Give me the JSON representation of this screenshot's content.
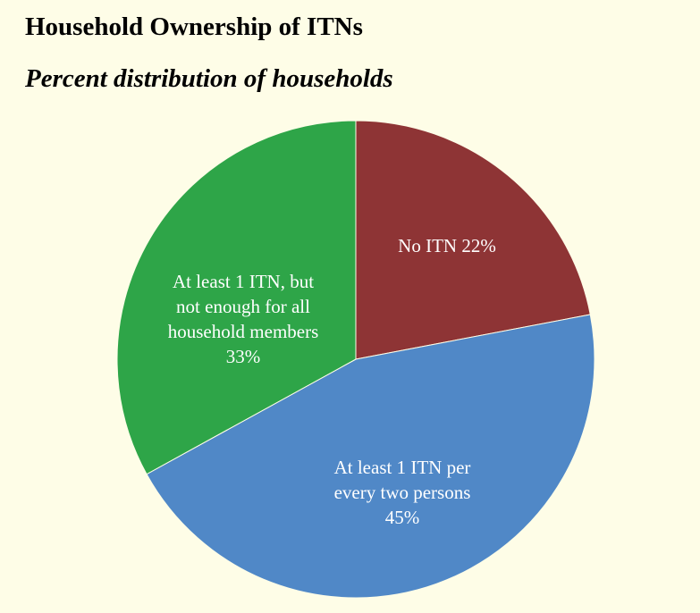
{
  "chart_data": {
    "type": "pie",
    "title": "Household Ownership of ITNs",
    "subtitle": "Percent distribution of households",
    "slices": [
      {
        "label_lines": [
          "No ITN 22%"
        ],
        "value": 22,
        "color": "#8e3435"
      },
      {
        "label_lines": [
          "At least 1 ITN per",
          "every two persons",
          "45%"
        ],
        "value": 45,
        "color": "#5088c7"
      },
      {
        "label_lines": [
          "At least 1 ITN, but",
          "not enough for all",
          "household members",
          "33%"
        ],
        "value": 33,
        "color": "#2ea548"
      }
    ],
    "start_angle_deg": 0,
    "direction": "clockwise",
    "legend": "none",
    "background": "#fefde7"
  }
}
